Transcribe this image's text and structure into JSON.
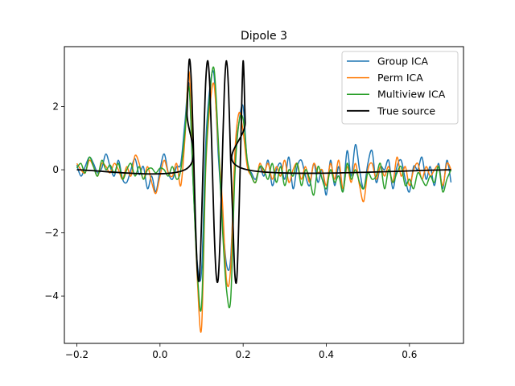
{
  "chart_data": {
    "type": "line",
    "title": "Dipole 3",
    "xlabel": "",
    "ylabel": "",
    "xlim": [
      -0.23,
      0.73
    ],
    "ylim": [
      -5.5,
      3.9
    ],
    "xticks": [
      -0.2,
      0.0,
      0.2,
      0.4,
      0.6
    ],
    "xtick_labels": [
      "−0.2",
      "0.0",
      "0.2",
      "0.4",
      "0.6"
    ],
    "yticks": [
      -4,
      -2,
      0,
      2
    ],
    "ytick_labels": [
      "−4",
      "−2",
      "0",
      "2"
    ],
    "legend_position": "top-right",
    "grid": false,
    "series": [
      {
        "name": "Group ICA",
        "color": "#1f77b4",
        "x": [
          -0.2,
          -0.19,
          -0.18,
          -0.17,
          -0.16,
          -0.15,
          -0.14,
          -0.13,
          -0.12,
          -0.11,
          -0.1,
          -0.09,
          -0.08,
          -0.07,
          -0.06,
          -0.05,
          -0.04,
          -0.03,
          -0.02,
          -0.01,
          0.0,
          0.01,
          0.02,
          0.03,
          0.04,
          0.05,
          0.06,
          0.07,
          0.08,
          0.09,
          0.1,
          0.11,
          0.12,
          0.13,
          0.14,
          0.15,
          0.16,
          0.17,
          0.18,
          0.19,
          0.2,
          0.21,
          0.22,
          0.23,
          0.24,
          0.25,
          0.26,
          0.27,
          0.28,
          0.29,
          0.3,
          0.31,
          0.32,
          0.33,
          0.34,
          0.35,
          0.36,
          0.37,
          0.38,
          0.39,
          0.4,
          0.41,
          0.42,
          0.43,
          0.44,
          0.45,
          0.46,
          0.47,
          0.48,
          0.49,
          0.5,
          0.51,
          0.52,
          0.53,
          0.54,
          0.55,
          0.56,
          0.57,
          0.58,
          0.59,
          0.6,
          0.61,
          0.62,
          0.63,
          0.64,
          0.65,
          0.66,
          0.67,
          0.68,
          0.69,
          0.7
        ],
        "y": [
          0.15,
          -0.2,
          0.1,
          0.4,
          0.2,
          -0.1,
          0.05,
          0.5,
          0.1,
          -0.2,
          0.3,
          -0.3,
          -0.4,
          0.0,
          0.35,
          -0.15,
          0.1,
          -0.6,
          -0.2,
          -0.7,
          0.0,
          0.5,
          -0.1,
          -0.3,
          0.1,
          0.2,
          1.5,
          2.7,
          -0.5,
          -3.0,
          -3.2,
          0.8,
          2.6,
          3.0,
          0.5,
          -1.5,
          -3.0,
          -2.8,
          0.3,
          1.5,
          2.0,
          0.2,
          -0.1,
          -0.3,
          0.1,
          -0.2,
          0.3,
          -0.5,
          0.0,
          0.2,
          -0.3,
          0.4,
          -0.6,
          0.1,
          0.3,
          -0.2,
          -0.5,
          0.2,
          -0.4,
          0.0,
          -0.8,
          0.3,
          -0.5,
          0.1,
          -0.7,
          0.6,
          -0.2,
          0.8,
          0.0,
          -0.6,
          0.2,
          0.6,
          -0.4,
          0.1,
          0.0,
          0.3,
          -0.6,
          0.1,
          0.3,
          -0.3,
          -0.7,
          0.1,
          0.0,
          0.4,
          -0.3,
          0.1,
          -0.5,
          0.2,
          -0.6,
          0.3,
          -0.4
        ]
      },
      {
        "name": "Perm ICA",
        "color": "#ff7f0e",
        "x": [
          -0.2,
          -0.19,
          -0.18,
          -0.17,
          -0.16,
          -0.15,
          -0.14,
          -0.13,
          -0.12,
          -0.11,
          -0.1,
          -0.09,
          -0.08,
          -0.07,
          -0.06,
          -0.05,
          -0.04,
          -0.03,
          -0.02,
          -0.01,
          0.0,
          0.01,
          0.02,
          0.03,
          0.04,
          0.05,
          0.06,
          0.07,
          0.08,
          0.09,
          0.1,
          0.11,
          0.12,
          0.13,
          0.14,
          0.15,
          0.16,
          0.17,
          0.18,
          0.19,
          0.2,
          0.21,
          0.22,
          0.23,
          0.24,
          0.25,
          0.26,
          0.27,
          0.28,
          0.29,
          0.3,
          0.31,
          0.32,
          0.33,
          0.34,
          0.35,
          0.36,
          0.37,
          0.38,
          0.39,
          0.4,
          0.41,
          0.42,
          0.43,
          0.44,
          0.45,
          0.46,
          0.47,
          0.48,
          0.49,
          0.5,
          0.51,
          0.52,
          0.53,
          0.54,
          0.55,
          0.56,
          0.57,
          0.58,
          0.59,
          0.6,
          0.61,
          0.62,
          0.63,
          0.64,
          0.65,
          0.66,
          0.67,
          0.68,
          0.69,
          0.7
        ],
        "y": [
          0.2,
          0.0,
          -0.1,
          0.3,
          0.1,
          -0.2,
          0.2,
          0.1,
          -0.1,
          0.2,
          0.0,
          -0.3,
          0.1,
          -0.2,
          0.45,
          0.2,
          -0.3,
          0.1,
          -0.4,
          -0.75,
          -0.2,
          0.3,
          -0.1,
          -0.2,
          0.2,
          -0.5,
          1.0,
          3.1,
          -0.2,
          -3.5,
          -5.0,
          0.0,
          2.0,
          2.7,
          0.8,
          -1.0,
          -3.5,
          -3.1,
          0.5,
          1.8,
          1.2,
          0.1,
          -0.2,
          -0.4,
          0.2,
          -0.1,
          0.2,
          -0.3,
          0.1,
          -0.2,
          0.3,
          -0.4,
          0.0,
          0.2,
          -0.3,
          0.1,
          -0.4,
          0.2,
          -0.1,
          0.0,
          -0.5,
          0.2,
          -0.3,
          0.3,
          -0.6,
          0.1,
          -0.4,
          0.2,
          -0.5,
          -1.0,
          0.0,
          0.2,
          -0.3,
          0.1,
          -0.2,
          0.1,
          -0.4,
          0.4,
          -0.2,
          0.1,
          -0.5,
          0.0,
          0.2,
          -0.3,
          0.1,
          -0.2,
          0.0,
          0.1,
          -0.5,
          0.2,
          0.0
        ]
      },
      {
        "name": "Multiview ICA",
        "color": "#2ca02c",
        "x": [
          -0.2,
          -0.19,
          -0.18,
          -0.17,
          -0.16,
          -0.15,
          -0.14,
          -0.13,
          -0.12,
          -0.11,
          -0.1,
          -0.09,
          -0.08,
          -0.07,
          -0.06,
          -0.05,
          -0.04,
          -0.03,
          -0.02,
          -0.01,
          0.0,
          0.01,
          0.02,
          0.03,
          0.04,
          0.05,
          0.06,
          0.07,
          0.08,
          0.09,
          0.1,
          0.11,
          0.12,
          0.13,
          0.14,
          0.15,
          0.16,
          0.17,
          0.18,
          0.19,
          0.2,
          0.21,
          0.22,
          0.23,
          0.24,
          0.25,
          0.26,
          0.27,
          0.28,
          0.29,
          0.3,
          0.31,
          0.32,
          0.33,
          0.34,
          0.35,
          0.36,
          0.37,
          0.38,
          0.39,
          0.4,
          0.41,
          0.42,
          0.43,
          0.44,
          0.45,
          0.46,
          0.47,
          0.48,
          0.49,
          0.5,
          0.51,
          0.52,
          0.53,
          0.54,
          0.55,
          0.56,
          0.57,
          0.58,
          0.59,
          0.6,
          0.61,
          0.62,
          0.63,
          0.64,
          0.65,
          0.66,
          0.67,
          0.68,
          0.69,
          0.7
        ],
        "y": [
          0.05,
          0.2,
          -0.1,
          0.4,
          0.1,
          -0.2,
          0.3,
          0.0,
          0.15,
          -0.1,
          0.2,
          -0.3,
          0.0,
          0.2,
          -0.2,
          0.1,
          -0.3,
          0.0,
          0.05,
          -0.1,
          0.05,
          0.0,
          -0.2,
          0.1,
          -0.3,
          0.0,
          1.2,
          2.6,
          -0.5,
          -3.3,
          -4.3,
          0.2,
          2.4,
          3.2,
          1.0,
          -1.8,
          -3.8,
          -4.1,
          -0.2,
          1.5,
          1.6,
          0.3,
          -0.2,
          -0.4,
          0.1,
          0.0,
          -0.3,
          0.2,
          -0.4,
          0.1,
          -0.5,
          0.0,
          -0.2,
          0.2,
          -0.5,
          0.0,
          -0.3,
          -0.8,
          0.1,
          -0.3,
          -0.6,
          0.0,
          -0.4,
          -0.2,
          -0.7,
          0.2,
          -0.3,
          0.0,
          -0.4,
          -0.6,
          -0.1,
          -0.3,
          -0.2,
          0.2,
          -0.6,
          0.0,
          -0.4,
          -0.1,
          0.1,
          -0.5,
          -0.3,
          -0.6,
          -0.1,
          -0.3,
          -0.5,
          -0.2,
          -0.4,
          0.1,
          -0.7,
          -0.3,
          0.0
        ]
      },
      {
        "name": "True source",
        "color": "#000000",
        "x": [
          -0.2,
          0.06,
          0.065,
          0.07,
          0.075,
          0.08,
          0.085,
          0.09,
          0.095,
          0.1,
          0.105,
          0.11,
          0.115,
          0.12,
          0.125,
          0.13,
          0.135,
          0.14,
          0.145,
          0.15,
          0.155,
          0.16,
          0.165,
          0.17,
          0.175,
          0.18,
          0.185,
          0.19,
          0.195,
          0.2,
          0.205,
          0.21,
          0.7
        ],
        "y": [
          0.0,
          0.0,
          1.8,
          3.45,
          2.9,
          0.9,
          -1.5,
          -3.2,
          -3.4,
          -1.6,
          0.8,
          2.8,
          3.45,
          2.6,
          0.5,
          -1.8,
          -3.3,
          -3.45,
          -2.0,
          0.4,
          2.6,
          3.45,
          2.5,
          0.3,
          -1.5,
          -3.3,
          -3.4,
          -1.4,
          1.2,
          3.45,
          1.5,
          0.0,
          0.0
        ]
      }
    ]
  }
}
